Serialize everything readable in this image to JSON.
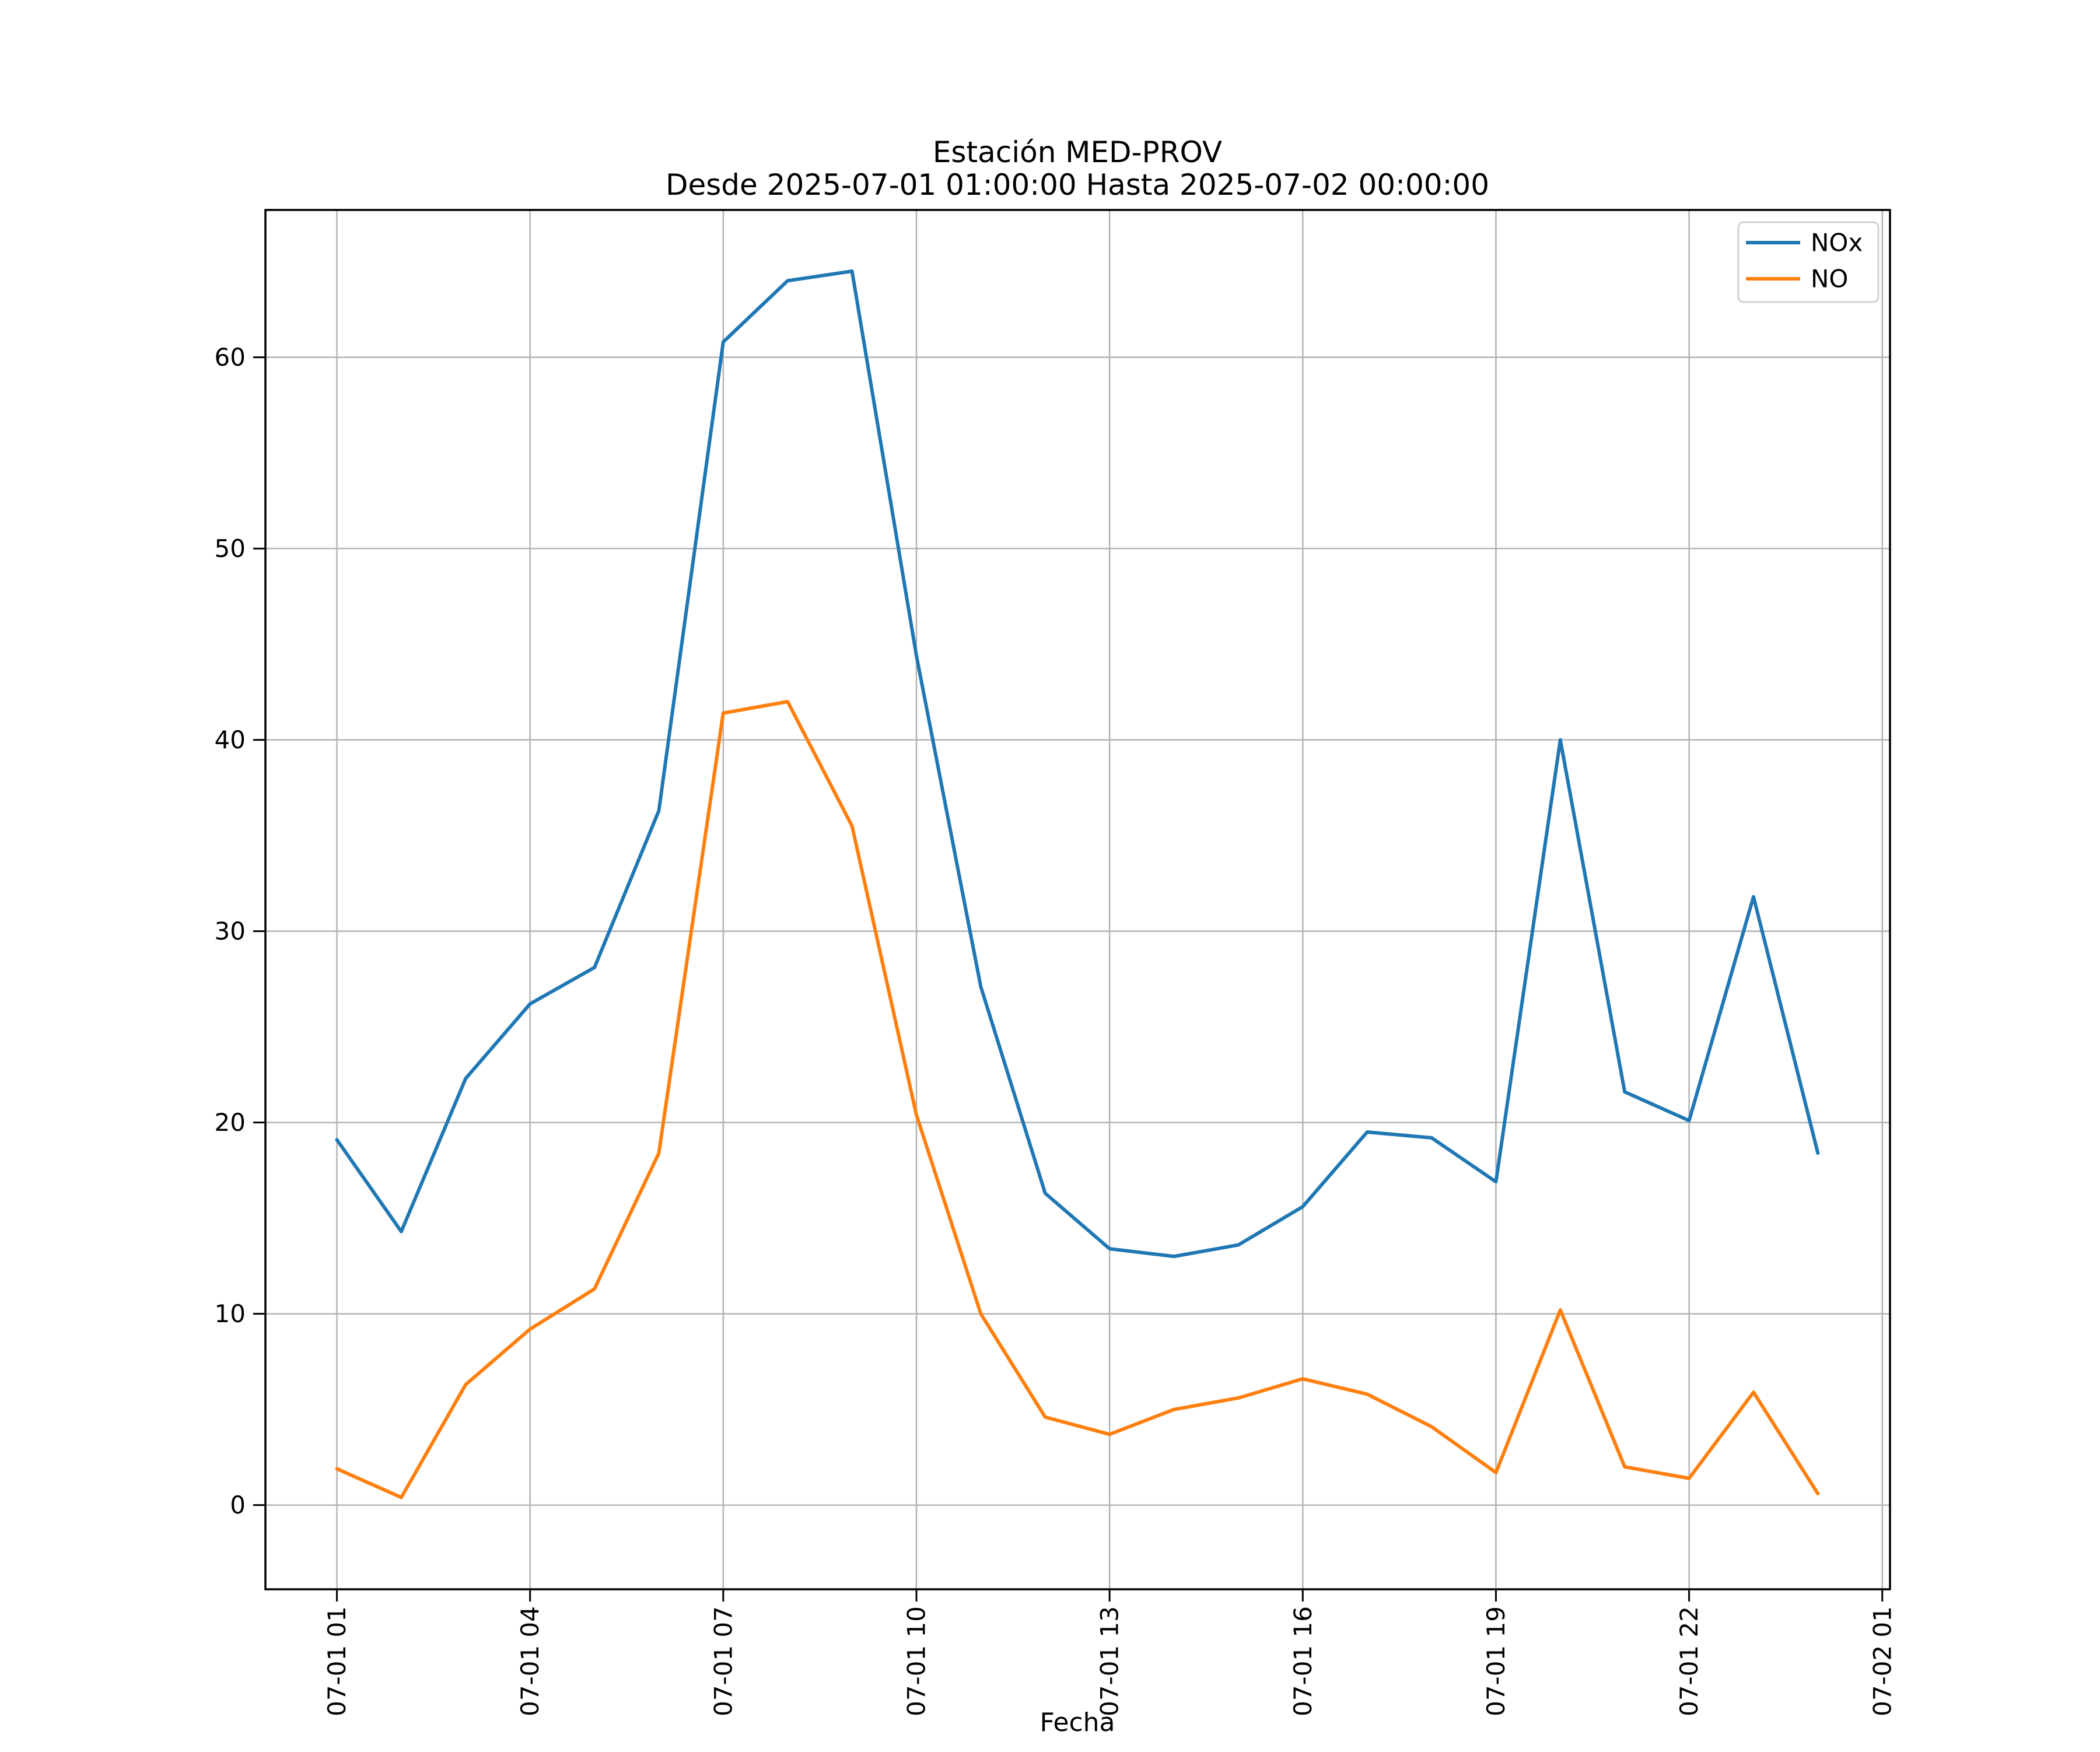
{
  "figure": {
    "title_line1": "Estación MED-PROV",
    "title_line2": "Desde 2025-07-01 01:00:00 Hasta 2025-07-02 00:00:00",
    "xlabel": "Fecha"
  },
  "legend": {
    "items": [
      {
        "label": "NOx",
        "color": "#1f77b4"
      },
      {
        "label": "NO",
        "color": "#ff7f0e"
      }
    ]
  },
  "colors": {
    "nox_line": "#1f77b4",
    "no_line": "#ff7f0e",
    "grid": "#b0b0b0",
    "spine": "#000000",
    "legend_border": "#d0d0d0",
    "background": "#ffffff"
  },
  "chart_data": {
    "type": "line",
    "title": "Estación MED-PROV\nDesde 2025-07-01 01:00:00 Hasta 2025-07-02 00:00:00",
    "xlabel": "Fecha",
    "ylabel": "",
    "grid": true,
    "legend_position": "upper right",
    "x_timestamps": [
      "2025-07-01 01:00",
      "2025-07-01 02:00",
      "2025-07-01 03:00",
      "2025-07-01 04:00",
      "2025-07-01 05:00",
      "2025-07-01 06:00",
      "2025-07-01 07:00",
      "2025-07-01 08:00",
      "2025-07-01 09:00",
      "2025-07-01 10:00",
      "2025-07-01 11:00",
      "2025-07-01 12:00",
      "2025-07-01 13:00",
      "2025-07-01 14:00",
      "2025-07-01 15:00",
      "2025-07-01 16:00",
      "2025-07-01 17:00",
      "2025-07-01 18:00",
      "2025-07-01 19:00",
      "2025-07-01 20:00",
      "2025-07-01 21:00",
      "2025-07-01 22:00",
      "2025-07-01 23:00",
      "2025-07-02 00:00"
    ],
    "x_hours": [
      1,
      2,
      3,
      4,
      5,
      6,
      7,
      8,
      9,
      10,
      11,
      12,
      13,
      14,
      15,
      16,
      17,
      18,
      19,
      20,
      21,
      22,
      23,
      24
    ],
    "series": [
      {
        "name": "NOx",
        "color": "#1f77b4",
        "values": [
          19.1,
          14.3,
          22.3,
          26.2,
          28.1,
          36.3,
          60.8,
          64.0,
          64.5,
          44.4,
          27.1,
          16.3,
          13.4,
          13.0,
          13.6,
          15.6,
          19.5,
          19.2,
          16.9,
          40.0,
          21.6,
          20.1,
          31.8,
          18.4
        ]
      },
      {
        "name": "NO",
        "color": "#ff7f0e",
        "values": [
          1.9,
          0.4,
          6.3,
          9.2,
          11.3,
          18.4,
          41.4,
          42.0,
          35.5,
          20.4,
          10.0,
          4.6,
          3.7,
          5.0,
          5.6,
          6.6,
          5.8,
          4.1,
          1.7,
          10.2,
          2.0,
          1.4,
          5.9,
          0.6
        ]
      }
    ],
    "xlim": [
      -0.11,
      25.12
    ],
    "ylim": [
      -4.4,
      67.7
    ],
    "xticks": {
      "positions": [
        1,
        4,
        7,
        10,
        13,
        16,
        19,
        22,
        25
      ],
      "labels": [
        "07-01 01",
        "07-01 04",
        "07-01 07",
        "07-01 10",
        "07-01 13",
        "07-01 16",
        "07-01 19",
        "07-01 22",
        "07-02 01"
      ]
    },
    "yticks": [
      0,
      10,
      20,
      30,
      40,
      50,
      60
    ]
  }
}
